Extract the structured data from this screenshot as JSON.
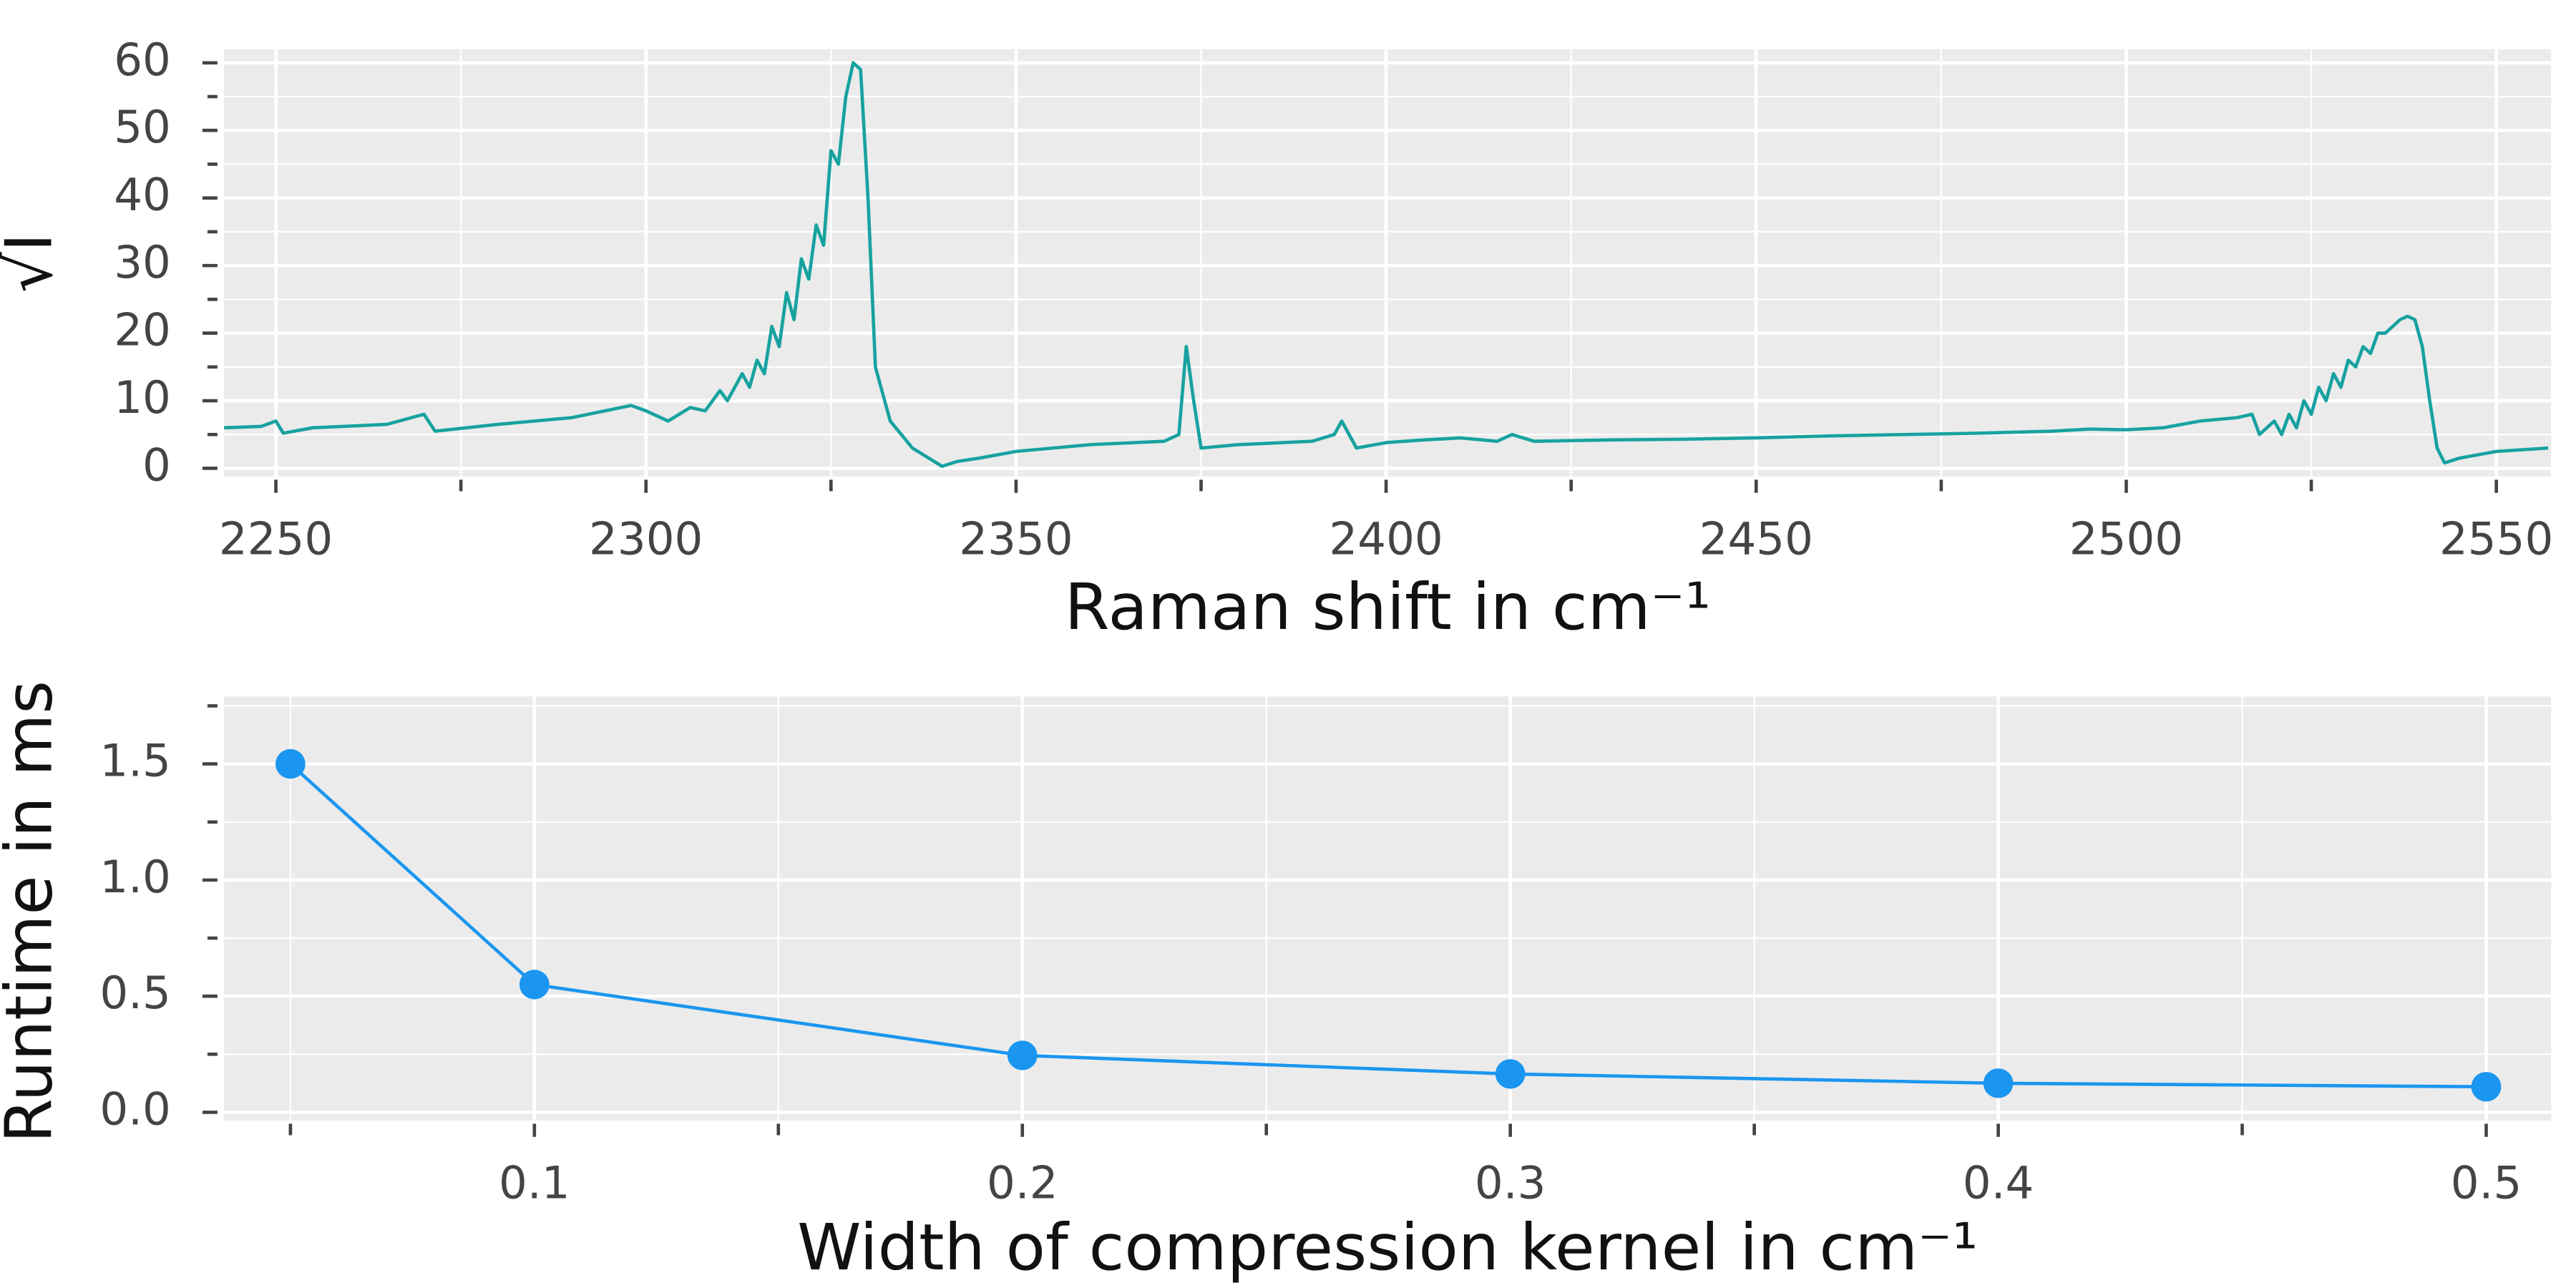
{
  "chart_data": [
    {
      "type": "line",
      "xlabel": "Raman shift in cm⁻¹",
      "ylabel": "√I",
      "x": [
        2243,
        2248,
        2250,
        2251,
        2255,
        2265,
        2270,
        2271.5,
        2280,
        2290,
        2298,
        2300,
        2303,
        2306,
        2308,
        2310,
        2311,
        2313,
        2314,
        2315,
        2316,
        2317,
        2318,
        2319,
        2320,
        2321,
        2322,
        2323,
        2324,
        2325,
        2326,
        2327,
        2328,
        2329,
        2330,
        2331,
        2333,
        2336,
        2340,
        2342,
        2345,
        2350,
        2355,
        2360,
        2370,
        2372,
        2373,
        2374,
        2375,
        2380,
        2390,
        2393,
        2394,
        2395,
        2396,
        2400,
        2405,
        2410,
        2415,
        2417,
        2420,
        2430,
        2440,
        2450,
        2460,
        2470,
        2480,
        2490,
        2495,
        2500,
        2505,
        2510,
        2515,
        2517,
        2518,
        2520,
        2521,
        2522,
        2523,
        2524,
        2525,
        2526,
        2527,
        2528,
        2529,
        2530,
        2531,
        2532,
        2533,
        2534,
        2535,
        2536,
        2537,
        2538,
        2539,
        2540,
        2541,
        2542,
        2543,
        2545,
        2550,
        2557
      ],
      "series": [
        {
          "color": "#17a2a0",
          "values": [
            6,
            6.2,
            7,
            5.2,
            6,
            6.5,
            8,
            5.5,
            6.5,
            7.5,
            9.3,
            8.5,
            7,
            9,
            8.5,
            11.5,
            10,
            14,
            12,
            16,
            14,
            21,
            18,
            26,
            22,
            31,
            28,
            36,
            33,
            47,
            45,
            55,
            60,
            59,
            40,
            15,
            7,
            3,
            0.3,
            1,
            1.5,
            2.5,
            3,
            3.5,
            4,
            5,
            18,
            10,
            3,
            3.5,
            4,
            5,
            7,
            5,
            3,
            3.8,
            4.2,
            4.5,
            4,
            5,
            4,
            4.2,
            4.3,
            4.5,
            4.8,
            5,
            5.2,
            5.5,
            5.8,
            5.7,
            6,
            7,
            7.5,
            8,
            5,
            7,
            5,
            8,
            6,
            10,
            8,
            12,
            10,
            14,
            12,
            16,
            15,
            18,
            17,
            20,
            20,
            21,
            22,
            22.5,
            22,
            18,
            10,
            3,
            0.8,
            1.5,
            2.5,
            3
          ]
        }
      ],
      "xlim": [
        2243,
        2557.4
      ],
      "ylim": [
        -1.2,
        62
      ],
      "xticks": [
        2250,
        2300,
        2350,
        2400,
        2450,
        2500,
        2550
      ],
      "xminorticks": [
        2275,
        2325,
        2375,
        2425,
        2475,
        2525
      ],
      "yticks": [
        0,
        10,
        20,
        30,
        40,
        50,
        60
      ],
      "yminorticks": [
        5,
        15,
        25,
        35,
        45,
        55
      ],
      "grid": true,
      "markers": false
    },
    {
      "type": "line",
      "xlabel": "Width of compression kernel in cm⁻¹",
      "ylabel": "Runtime in ms",
      "x": [
        0.05,
        0.1,
        0.2,
        0.3,
        0.4,
        0.5
      ],
      "series": [
        {
          "color": "#1a96f0",
          "values": [
            1.5,
            0.55,
            0.245,
            0.165,
            0.125,
            0.11
          ]
        }
      ],
      "xlim": [
        0.0364,
        0.5133
      ],
      "ylim": [
        -0.035,
        1.79
      ],
      "xticks": [
        0.1,
        0.2,
        0.3,
        0.4,
        0.5
      ],
      "xminorticks": [
        0.05,
        0.15,
        0.25,
        0.35,
        0.45
      ],
      "yticks": [
        {
          "value": 0,
          "label": "0.0"
        },
        0.5,
        {
          "value": 1,
          "label": "1.0"
        },
        1.5
      ],
      "yminorticks": [
        0.25,
        0.75,
        1.25,
        1.75
      ],
      "grid": true,
      "markers": true
    }
  ]
}
